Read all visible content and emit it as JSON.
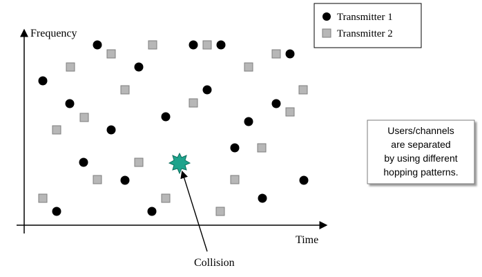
{
  "axes": {
    "y_label": "Frequency",
    "x_label": "Time"
  },
  "legend": {
    "items": [
      {
        "label": "Transmitter 1",
        "marker": "circle",
        "color": "#000000"
      },
      {
        "label": "Transmitter 2",
        "marker": "square",
        "color": "#b7b7b7"
      }
    ]
  },
  "note": {
    "lines": [
      "Users/channels",
      "are separated",
      "by using different",
      "hopping patterns."
    ]
  },
  "collision": {
    "label": "Collision",
    "color": "#1ea38c"
  },
  "colors": {
    "transmitter_1": "#000000",
    "transmitter_2_fill": "#b7b7b7",
    "transmitter_2_stroke": "#7d7d7d",
    "axis": "#000000"
  }
}
